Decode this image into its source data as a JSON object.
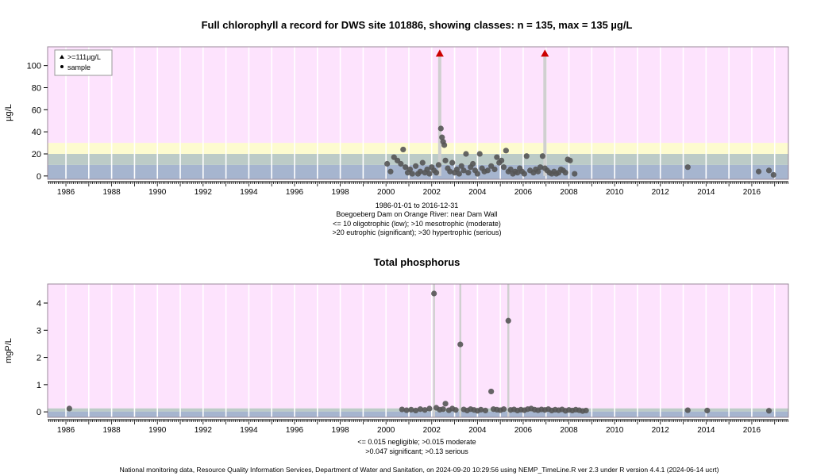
{
  "footer": "National monitoring data, Resource Quality Information Services, Department of Water and Sanitation, on 2024-09-20 10:29:56 using NEMP_TimeLine.R ver 2.3 under R version 4.4.1 (2024-06-14 ucrt)",
  "colors": {
    "oligotrophic": "#a6b5cf",
    "mesotrophic": "#bccbc7",
    "eutrophic": "#fdfbcf",
    "hypertrophic": "#fde3fd",
    "tp_negligible": "#a6b5cf",
    "tp_moderate": "#bccbc7",
    "tp_serious": "#fde3fd",
    "point": "#555555",
    "exceed_marker": "#cc0000",
    "stem": "#d0d0d0"
  },
  "chart_data": [
    {
      "type": "scatter",
      "title": "Full chlorophyll a record for DWS site 101886, showing classes: n = 135, max = 135 µg/L",
      "ylabel": "µg/L",
      "xlim": [
        1985.2,
        2017.6
      ],
      "ylim": [
        -3,
        117
      ],
      "yticks": [
        0,
        20,
        40,
        60,
        80,
        100
      ],
      "xticks": [
        1986,
        1988,
        1990,
        1992,
        1994,
        1996,
        1998,
        2000,
        2002,
        2004,
        2006,
        2008,
        2010,
        2012,
        2014,
        2016
      ],
      "grid": true,
      "legend": {
        "position": "top-left",
        "entries": [
          {
            "label": ">=111µg/L",
            "marker": "triangle",
            "color": "#cc0000"
          },
          {
            "label": "sample",
            "marker": "dot",
            "color": "#000000"
          }
        ]
      },
      "bands": [
        {
          "from": -3,
          "to": 10,
          "class": "oligotrophic"
        },
        {
          "from": 10,
          "to": 20,
          "class": "mesotrophic"
        },
        {
          "from": 20,
          "to": 30,
          "class": "eutrophic"
        },
        {
          "from": 30,
          "to": 117,
          "class": "hypertrophic"
        }
      ],
      "subtitle_lines": [
        "1986-01-01 to 2016-12-31",
        "Boegoeberg Dam on Orange River: near Dam Wall",
        "<= 10 oligotrophic (low); >10 mesotrophic (moderate)",
        ">20 eutrophic (significant); >30 hypertrophic (serious)"
      ],
      "exceedances": [
        {
          "x": 2002.35,
          "y": 111
        },
        {
          "x": 2006.95,
          "y": 111
        }
      ],
      "points": [
        [
          2000.05,
          11
        ],
        [
          2000.2,
          4
        ],
        [
          2000.35,
          17
        ],
        [
          2000.5,
          14
        ],
        [
          2000.65,
          11
        ],
        [
          2000.75,
          24
        ],
        [
          2000.85,
          8
        ],
        [
          2000.95,
          3
        ],
        [
          2001.05,
          6
        ],
        [
          2001.15,
          2
        ],
        [
          2001.3,
          9
        ],
        [
          2001.4,
          2
        ],
        [
          2001.5,
          4
        ],
        [
          2001.6,
          12
        ],
        [
          2001.7,
          3
        ],
        [
          2001.8,
          6
        ],
        [
          2001.9,
          2
        ],
        [
          2002.0,
          8
        ],
        [
          2002.1,
          5
        ],
        [
          2002.2,
          3
        ],
        [
          2002.3,
          10
        ],
        [
          2002.4,
          43
        ],
        [
          2002.45,
          35
        ],
        [
          2002.5,
          31
        ],
        [
          2002.55,
          28
        ],
        [
          2002.6,
          14
        ],
        [
          2002.7,
          7
        ],
        [
          2002.8,
          4
        ],
        [
          2002.9,
          12
        ],
        [
          2003.0,
          3
        ],
        [
          2003.1,
          6
        ],
        [
          2003.2,
          2
        ],
        [
          2003.3,
          9
        ],
        [
          2003.4,
          5
        ],
        [
          2003.5,
          20
        ],
        [
          2003.6,
          3
        ],
        [
          2003.7,
          8
        ],
        [
          2003.8,
          11
        ],
        [
          2003.9,
          5
        ],
        [
          2004.0,
          2
        ],
        [
          2004.1,
          20
        ],
        [
          2004.2,
          7
        ],
        [
          2004.3,
          4
        ],
        [
          2004.45,
          5
        ],
        [
          2004.6,
          9
        ],
        [
          2004.75,
          6
        ],
        [
          2004.85,
          17
        ],
        [
          2004.95,
          12
        ],
        [
          2005.05,
          14
        ],
        [
          2005.15,
          8
        ],
        [
          2005.25,
          23
        ],
        [
          2005.35,
          4
        ],
        [
          2005.45,
          6
        ],
        [
          2005.55,
          2
        ],
        [
          2005.65,
          4
        ],
        [
          2005.75,
          3
        ],
        [
          2005.85,
          7
        ],
        [
          2005.95,
          4
        ],
        [
          2006.05,
          2
        ],
        [
          2006.15,
          18
        ],
        [
          2006.3,
          5
        ],
        [
          2006.45,
          3
        ],
        [
          2006.55,
          6
        ],
        [
          2006.65,
          4
        ],
        [
          2006.75,
          8
        ],
        [
          2006.85,
          18
        ],
        [
          2006.95,
          7
        ],
        [
          2007.05,
          5
        ],
        [
          2007.15,
          3
        ],
        [
          2007.25,
          2
        ],
        [
          2007.35,
          4
        ],
        [
          2007.45,
          2
        ],
        [
          2007.55,
          3
        ],
        [
          2007.65,
          6
        ],
        [
          2007.75,
          5
        ],
        [
          2007.85,
          3
        ],
        [
          2007.95,
          15
        ],
        [
          2008.05,
          14
        ],
        [
          2008.25,
          2
        ],
        [
          2013.2,
          8
        ],
        [
          2016.3,
          4
        ],
        [
          2016.75,
          5
        ],
        [
          2016.95,
          1
        ]
      ]
    },
    {
      "type": "scatter",
      "title": "Total phosphorus",
      "ylabel": "mgP/L",
      "xlim": [
        1985.2,
        2017.6
      ],
      "ylim": [
        -0.2,
        4.7
      ],
      "yticks": [
        0,
        1,
        2,
        3,
        4
      ],
      "xticks": [
        1986,
        1988,
        1990,
        1992,
        1994,
        1996,
        1998,
        2000,
        2002,
        2004,
        2006,
        2008,
        2010,
        2012,
        2014,
        2016
      ],
      "grid": true,
      "bands": [
        {
          "from": -0.2,
          "to": 0.015,
          "class": "tp_negligible"
        },
        {
          "from": 0.015,
          "to": 0.13,
          "class": "tp_moderate"
        },
        {
          "from": 0.13,
          "to": 4.7,
          "class": "tp_serious"
        }
      ],
      "subtitle_lines": [
        "<= 0.015 negligible; >0.015 moderate",
        ">0.047 significant; >0.13 serious"
      ],
      "stems": [
        2002.1,
        2003.25,
        2005.35
      ],
      "points": [
        [
          1986.15,
          0.12
        ],
        [
          2000.7,
          0.09
        ],
        [
          2000.9,
          0.06
        ],
        [
          2001.1,
          0.08
        ],
        [
          2001.3,
          0.05
        ],
        [
          2001.5,
          0.1
        ],
        [
          2001.7,
          0.07
        ],
        [
          2001.9,
          0.12
        ],
        [
          2002.1,
          4.35
        ],
        [
          2002.2,
          0.15
        ],
        [
          2002.35,
          0.08
        ],
        [
          2002.5,
          0.1
        ],
        [
          2002.6,
          0.3
        ],
        [
          2002.75,
          0.06
        ],
        [
          2002.9,
          0.12
        ],
        [
          2003.05,
          0.07
        ],
        [
          2003.25,
          2.48
        ],
        [
          2003.4,
          0.09
        ],
        [
          2003.55,
          0.05
        ],
        [
          2003.7,
          0.1
        ],
        [
          2003.85,
          0.07
        ],
        [
          2004.0,
          0.04
        ],
        [
          2004.15,
          0.08
        ],
        [
          2004.35,
          0.05
        ],
        [
          2004.6,
          0.75
        ],
        [
          2004.7,
          0.1
        ],
        [
          2004.85,
          0.08
        ],
        [
          2005.0,
          0.06
        ],
        [
          2005.15,
          0.1
        ],
        [
          2005.35,
          3.35
        ],
        [
          2005.45,
          0.07
        ],
        [
          2005.6,
          0.09
        ],
        [
          2005.75,
          0.05
        ],
        [
          2005.9,
          0.08
        ],
        [
          2006.05,
          0.06
        ],
        [
          2006.2,
          0.1
        ],
        [
          2006.35,
          0.12
        ],
        [
          2006.5,
          0.08
        ],
        [
          2006.65,
          0.06
        ],
        [
          2006.8,
          0.09
        ],
        [
          2006.95,
          0.07
        ],
        [
          2007.1,
          0.1
        ],
        [
          2007.25,
          0.05
        ],
        [
          2007.4,
          0.08
        ],
        [
          2007.55,
          0.06
        ],
        [
          2007.7,
          0.09
        ],
        [
          2007.85,
          0.04
        ],
        [
          2008.0,
          0.07
        ],
        [
          2008.15,
          0.05
        ],
        [
          2008.3,
          0.08
        ],
        [
          2008.45,
          0.06
        ],
        [
          2008.6,
          0.03
        ],
        [
          2008.75,
          0.05
        ],
        [
          2013.2,
          0.06
        ],
        [
          2014.05,
          0.05
        ],
        [
          2016.75,
          0.04
        ]
      ]
    }
  ]
}
